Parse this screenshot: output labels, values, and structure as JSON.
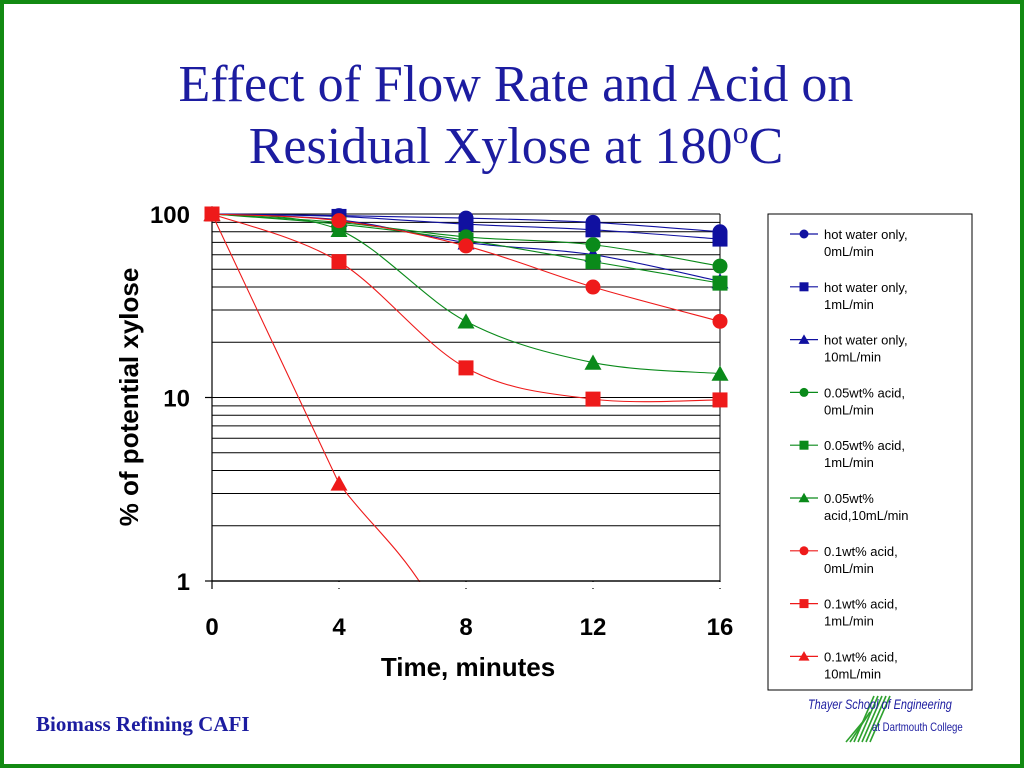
{
  "slide": {
    "title_line1": "Effect of Flow Rate and Acid  on",
    "title_line2_prefix": "Residual Xylose at 180",
    "title_superscript": "o",
    "title_suffix": "C",
    "footer": "Biomass Refining CAFI",
    "logo_line1": "Thayer School of Engineering",
    "logo_line2": "at Dartmouth College",
    "border_color": "#128a12"
  },
  "chart_data": {
    "type": "line",
    "title": "",
    "xlabel": "Time, minutes",
    "ylabel": "% of potential xylose",
    "x": [
      0,
      4,
      8,
      12,
      16
    ],
    "x_ticks": [
      "0",
      "4",
      "8",
      "12",
      "16"
    ],
    "xlim": [
      0,
      16
    ],
    "ylim": [
      1,
      100
    ],
    "y_scale": "log",
    "y_ticks": [
      "100",
      "10",
      "1"
    ],
    "grid": "horizontal",
    "legend_position": "right",
    "series": [
      {
        "name": "hot water only, 0mL/min",
        "legend_lines": [
          "hot water only,",
          "0mL/min"
        ],
        "color": "#1010a0",
        "marker": "circle",
        "values": [
          100,
          98,
          95,
          90,
          80
        ]
      },
      {
        "name": "hot water only, 1mL/min",
        "legend_lines": [
          "hot water only,",
          "1mL/min"
        ],
        "color": "#1010a0",
        "marker": "square",
        "values": [
          100,
          97,
          88,
          82,
          73
        ]
      },
      {
        "name": "hot water only, 10mL/min",
        "legend_lines": [
          "hot water only,",
          "10mL/min"
        ],
        "color": "#1010a0",
        "marker": "triangle",
        "values": [
          100,
          93,
          70,
          60,
          43
        ]
      },
      {
        "name": "0.05wt% acid, 0mL/min",
        "legend_lines": [
          "0.05wt% acid,",
          "0mL/min"
        ],
        "color": "#0a8a1a",
        "marker": "circle",
        "values": [
          100,
          90,
          75,
          68,
          52
        ]
      },
      {
        "name": "0.05wt% acid, 1mL/min",
        "legend_lines": [
          "0.05wt% acid,",
          "1mL/min"
        ],
        "color": "#0a8a1a",
        "marker": "square",
        "values": [
          100,
          88,
          72,
          55,
          42
        ]
      },
      {
        "name": "0.05wt% acid,10mL/min",
        "legend_lines": [
          "0.05wt%",
          "acid,10mL/min"
        ],
        "color": "#0a8a1a",
        "marker": "triangle",
        "values": [
          100,
          82,
          26,
          15.5,
          13.5
        ]
      },
      {
        "name": "0.1wt% acid, 0mL/min",
        "legend_lines": [
          "0.1wt% acid,",
          "0mL/min"
        ],
        "color": "#ee1a1a",
        "marker": "circle",
        "values": [
          100,
          92,
          67,
          40,
          26
        ]
      },
      {
        "name": "0.1wt% acid, 1mL/min",
        "legend_lines": [
          "0.1wt% acid,",
          "1mL/min"
        ],
        "color": "#ee1a1a",
        "marker": "square",
        "values": [
          100,
          55,
          14.5,
          9.8,
          9.7
        ]
      },
      {
        "name": "0.1wt% acid, 10mL/min",
        "legend_lines": [
          "0.1wt% acid,",
          "10mL/min"
        ],
        "color": "#ee1a1a",
        "marker": "triangle",
        "values": [
          100,
          3.4,
          null,
          null,
          null
        ]
      }
    ]
  }
}
